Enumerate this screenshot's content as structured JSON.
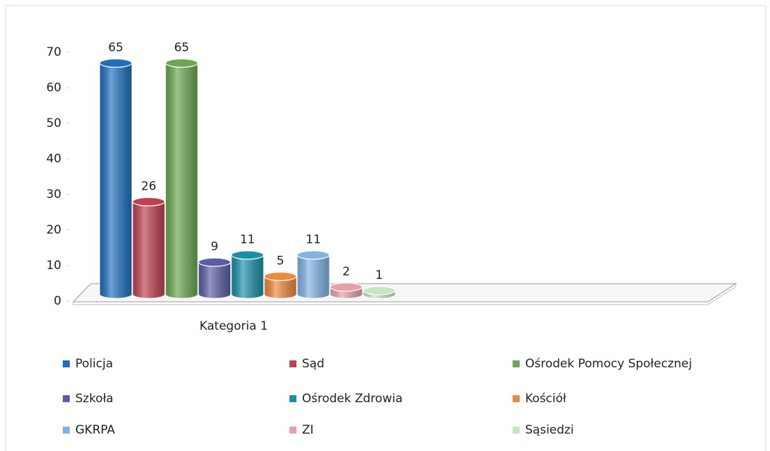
{
  "chart_data": {
    "type": "bar3d",
    "categories": [
      "Kategoria 1"
    ],
    "series": [
      {
        "name": "Policja",
        "color": "#1f6fbf",
        "values": [
          65
        ]
      },
      {
        "name": "Sąd",
        "color": "#c0404f",
        "values": [
          26
        ]
      },
      {
        "name": "Ośrodek Pomocy Społecznej",
        "color": "#6aa84f",
        "values": [
          65
        ]
      },
      {
        "name": "Szkoła",
        "color": "#5b5ea6",
        "values": [
          9
        ]
      },
      {
        "name": "Ośrodek Zdrowia",
        "color": "#1a8fa8",
        "values": [
          11
        ]
      },
      {
        "name": "Kościół",
        "color": "#f0883a",
        "values": [
          5
        ]
      },
      {
        "name": "GKRPA",
        "color": "#7fb2e5",
        "values": [
          11
        ]
      },
      {
        "name": "ZI",
        "color": "#e8a0a8",
        "values": [
          2
        ]
      },
      {
        "name": "Sąsiedzi",
        "color": "#c5e6c0",
        "values": [
          1
        ]
      }
    ],
    "ylim": [
      0,
      70
    ],
    "yticks": [
      0,
      10,
      20,
      30,
      40,
      50,
      60,
      70
    ],
    "legend": "bottom"
  }
}
